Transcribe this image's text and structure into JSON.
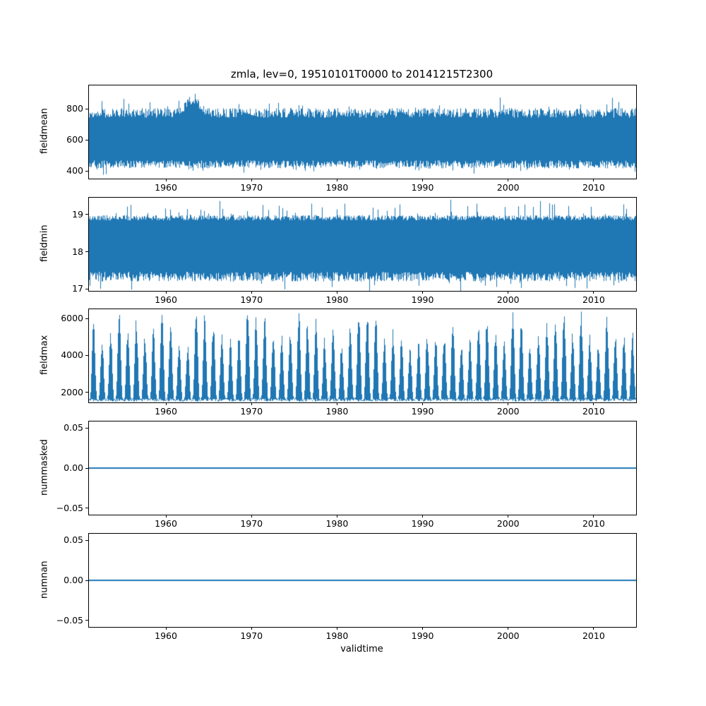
{
  "title": "zmla, lev=0, 19510101T0000 to 20141215T2300",
  "xlabel": "validtime",
  "accent_color": "#1f77b4",
  "axis_color": "#000000",
  "xlim": [
    1951.0,
    2014.96
  ],
  "x_ticks": {
    "values": [
      1960,
      1970,
      1980,
      1990,
      2000,
      2010
    ],
    "labels": [
      "1960",
      "1970",
      "1980",
      "1990",
      "2000",
      "2010"
    ]
  },
  "chart_data": [
    {
      "type": "line",
      "ylabel": "fieldmean",
      "ylim": [
        350,
        950
      ],
      "y_ticks": {
        "values": [
          400,
          600,
          800
        ],
        "labels": [
          "400",
          "600",
          "800"
        ]
      },
      "series_description": "Hourly field mean 1951-2014: dense band oscillating ~430-800, ragged edges, occasional dips to ~380 and a spike cluster reaching ~935 around 1963.",
      "signal": {
        "kind": "band",
        "high_base": 742,
        "high_var": 62,
        "spike_p": 0.05,
        "spike_extra": 85,
        "low_base": 468,
        "low_var": 52,
        "dip_p": 0.04,
        "dip_extra": 55,
        "bump_year": 1963.1,
        "bump_width": 1.1,
        "bump_height": 125
      }
    },
    {
      "type": "line",
      "ylabel": "fieldmin",
      "ylim": [
        16.95,
        19.45
      ],
      "y_ticks": {
        "values": [
          17,
          18,
          19
        ],
        "labels": [
          "17",
          "18",
          "19"
        ]
      },
      "series_description": "Hourly field minimum: dense band between ~17.2 and ~18.95 with frequent spikes to ~19.4 and occasional dips to ~17.0.",
      "signal": {
        "kind": "band",
        "high_base": 18.84,
        "high_var": 0.14,
        "spike_p": 0.08,
        "spike_extra": 0.45,
        "low_base": 17.46,
        "low_var": 0.26,
        "dip_p": 0.05,
        "dip_extra": 0.34
      }
    },
    {
      "type": "line",
      "ylabel": "fieldmax",
      "ylim": [
        1450,
        6500
      ],
      "y_ticks": {
        "values": [
          2000,
          4000,
          6000
        ],
        "labels": [
          "2000",
          "4000",
          "6000"
        ]
      },
      "series_description": "Hourly field maximum: strong annual cycle, solid base band ~1500-1700, yearly peaks varying between ~4300 and ~6300.",
      "signal": {
        "kind": "seasonal",
        "floor_base": 1490,
        "floor_var": 170,
        "peak_min": 4300,
        "peak_max": 6300,
        "sharpness": 1.5,
        "phase": 0.29
      }
    },
    {
      "type": "line",
      "ylabel": "nummasked",
      "ylim": [
        -0.058,
        0.058
      ],
      "y_ticks": {
        "values": [
          0.05,
          0.0,
          -0.05
        ],
        "labels": [
          "0.05",
          "0.00",
          "−0.05"
        ]
      },
      "series_description": "Number of masked points: constant 0 over the whole period.",
      "signal": {
        "kind": "constant",
        "value": 0
      }
    },
    {
      "type": "line",
      "ylabel": "numnan",
      "ylim": [
        -0.058,
        0.058
      ],
      "y_ticks": {
        "values": [
          0.05,
          0.0,
          -0.05
        ],
        "labels": [
          "0.05",
          "0.00",
          "−0.05"
        ]
      },
      "series_description": "Number of NaN points: constant 0 over the whole period.",
      "signal": {
        "kind": "constant",
        "value": 0
      }
    }
  ]
}
